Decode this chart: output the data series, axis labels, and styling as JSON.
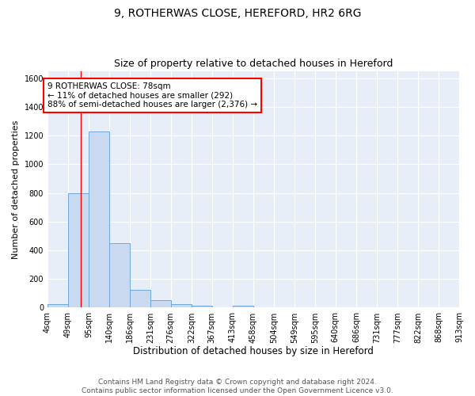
{
  "title1": "9, ROTHERWAS CLOSE, HEREFORD, HR2 6RG",
  "title2": "Size of property relative to detached houses in Hereford",
  "xlabel": "Distribution of detached houses by size in Hereford",
  "ylabel": "Number of detached properties",
  "bar_values": [
    25,
    800,
    1230,
    450,
    125,
    55,
    25,
    15,
    0,
    15,
    0,
    0,
    0,
    0,
    0,
    0,
    0,
    0,
    0,
    0
  ],
  "bin_labels": [
    "4sqm",
    "49sqm",
    "95sqm",
    "140sqm",
    "186sqm",
    "231sqm",
    "276sqm",
    "322sqm",
    "367sqm",
    "413sqm",
    "458sqm",
    "504sqm",
    "549sqm",
    "595sqm",
    "640sqm",
    "686sqm",
    "731sqm",
    "777sqm",
    "822sqm",
    "868sqm",
    "913sqm"
  ],
  "bin_edges": [
    4,
    49,
    95,
    140,
    186,
    231,
    276,
    322,
    367,
    413,
    458,
    504,
    549,
    595,
    640,
    686,
    731,
    777,
    822,
    868,
    913
  ],
  "bar_color": "#c9d9f0",
  "bar_edge_color": "#6fa8dc",
  "red_line_x": 78,
  "annotation_text": "9 ROTHERWAS CLOSE: 78sqm\n← 11% of detached houses are smaller (292)\n88% of semi-detached houses are larger (2,376) →",
  "annotation_box_color": "white",
  "annotation_border_color": "red",
  "ylim": [
    0,
    1650
  ],
  "yticks": [
    0,
    200,
    400,
    600,
    800,
    1000,
    1200,
    1400,
    1600
  ],
  "bg_color": "#e8eef8",
  "footer": "Contains HM Land Registry data © Crown copyright and database right 2024.\nContains public sector information licensed under the Open Government Licence v3.0.",
  "title1_fontsize": 10,
  "title2_fontsize": 9,
  "xlabel_fontsize": 8.5,
  "ylabel_fontsize": 8,
  "tick_fontsize": 7,
  "footer_fontsize": 6.5,
  "annotation_fontsize": 7.5
}
